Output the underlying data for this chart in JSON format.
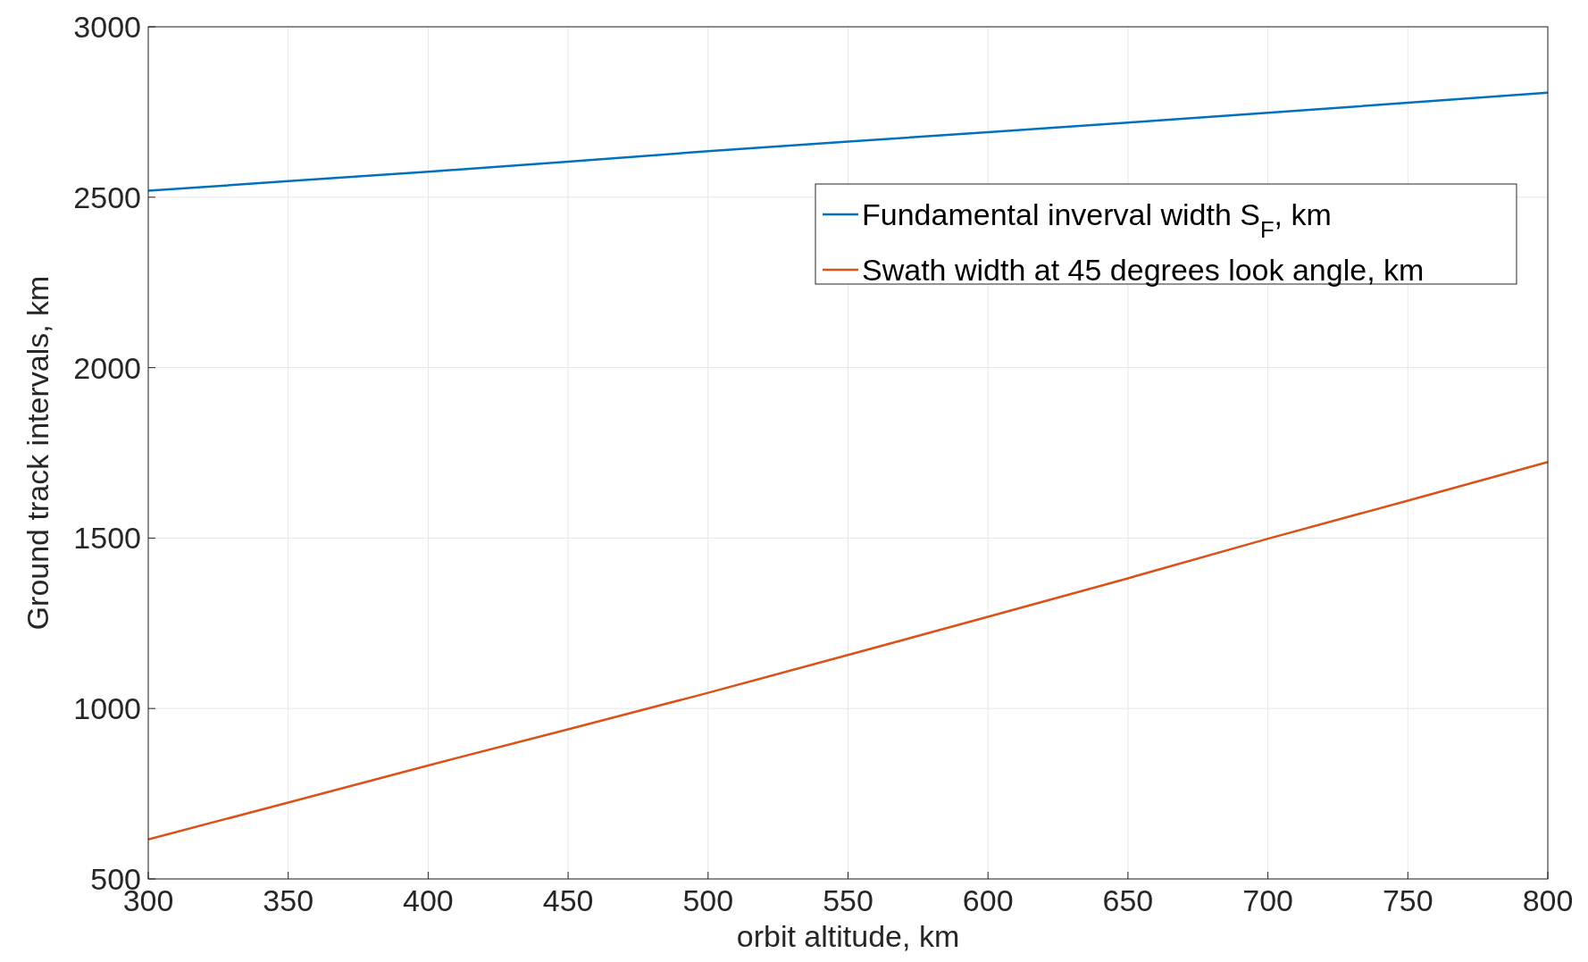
{
  "chart_data": {
    "type": "line",
    "xlabel": "orbit altitude, km",
    "ylabel": "Ground track intervals, km",
    "x": [
      300,
      350,
      400,
      450,
      500,
      550,
      600,
      650,
      700,
      750,
      800
    ],
    "series": [
      {
        "name": "Fundamental inverval width S$_{F}$, km",
        "color": "#0072bd",
        "values": [
          2519,
          2547,
          2575,
          2604,
          2635,
          2663,
          2691,
          2719,
          2748,
          2777,
          2807
        ]
      },
      {
        "name": "Swath width at 45 degrees look angle, km",
        "color": "#d95319",
        "values": [
          616,
          724,
          833,
          939,
          1046,
          1157,
          1269,
          1382,
          1498,
          1610,
          1723
        ]
      }
    ],
    "xlim": [
      300,
      800
    ],
    "xticks": [
      300,
      350,
      400,
      450,
      500,
      550,
      600,
      650,
      700,
      750,
      800
    ],
    "ylim": [
      500,
      3000
    ],
    "yticks": [
      500,
      1000,
      1500,
      2000,
      2500,
      3000
    ],
    "grid": true,
    "legend": "top right",
    "marker": "none",
    "line_style": "solid"
  }
}
